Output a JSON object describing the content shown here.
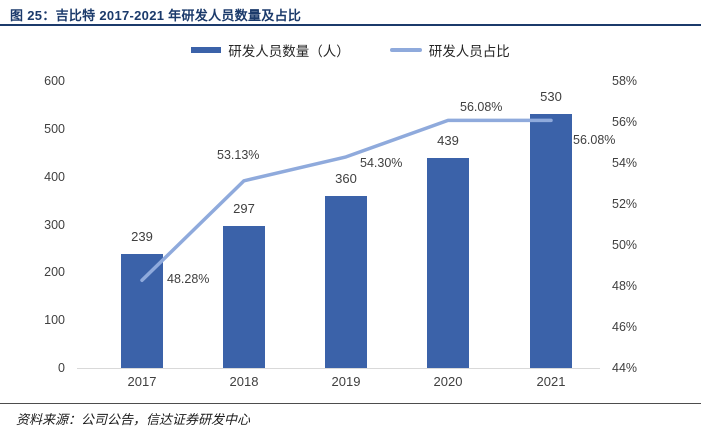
{
  "theme": {
    "navy": "#1b3a6b",
    "bar_blue": "#3b62a9",
    "line_blue": "#8faadc",
    "axis_text": "#404040",
    "baseline_gray": "#d9d9d9",
    "rule_dark": "#4d4d4d"
  },
  "header": {
    "title": "图 25：吉比特 2017-2021 年研发人员数量及占比"
  },
  "legend": {
    "items": [
      {
        "label": "研发人员数量（人）"
      },
      {
        "label": "研发人员占比"
      }
    ]
  },
  "chart_data": {
    "type": "combo",
    "categories": [
      "2017",
      "2018",
      "2019",
      "2020",
      "2021"
    ],
    "series": [
      {
        "name": "研发人员数量（人）",
        "type": "bar",
        "axis": "left",
        "color": "#3b62a9",
        "values": [
          239,
          297,
          360,
          439,
          530
        ],
        "labels": [
          "239",
          "297",
          "360",
          "439",
          "530"
        ]
      },
      {
        "name": "研发人员占比",
        "type": "line",
        "axis": "right",
        "color": "#8faadc",
        "values": [
          48.28,
          53.13,
          54.3,
          56.08,
          56.08
        ],
        "labels": [
          "48.28%",
          "53.13%",
          "54.30%",
          "56.08%",
          "56.08%"
        ]
      }
    ],
    "left_axis": {
      "min": 0,
      "max": 600,
      "step": 100,
      "ticks": [
        "0",
        "100",
        "200",
        "300",
        "400",
        "500",
        "600"
      ]
    },
    "right_axis": {
      "min": 44,
      "max": 58,
      "step": 2,
      "ticks": [
        "44%",
        "46%",
        "48%",
        "50%",
        "52%",
        "54%",
        "56%",
        "58%"
      ]
    },
    "grid": false,
    "legend_position": "top",
    "title": "吉比特 2017-2021 年研发人员数量及占比"
  },
  "footer": {
    "source": "资料来源：公司公告，信达证券研发中心"
  }
}
